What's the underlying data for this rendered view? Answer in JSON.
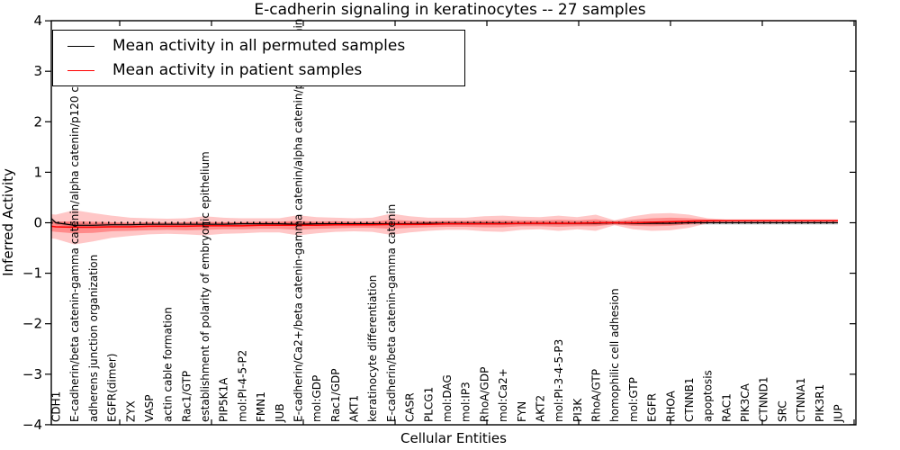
{
  "title": "E-cadherin signaling in keratinocytes -- 27 samples",
  "legend": {
    "entries": [
      {
        "label": "Mean activity in all permuted samples",
        "color": "#000000"
      },
      {
        "label": "Mean activity in patient samples",
        "color": "#ff0000"
      }
    ]
  },
  "chart_data": {
    "type": "line",
    "title": "E-cadherin signaling in keratinocytes -- 27 samples",
    "xlabel": "Cellular Entities",
    "ylabel": "Inferred Activity",
    "ylim": [
      -4,
      4
    ],
    "yticks": [
      4,
      3,
      2,
      1,
      0,
      -1,
      -2,
      -3,
      -4
    ],
    "grid": false,
    "legend_position": "upper left",
    "entities": [
      "CDH1",
      "E-cadherin/beta catenin-gamma catenin/alpha catenin/p120 catenin",
      "adherens junction organization",
      "EGFR(dimer)",
      "ZYX",
      "VASP",
      "actin cable formation",
      "Rac1/GTP",
      "establishment of polarity of embryonic epithelium",
      "PIP5K1A",
      "mol:PI-4-5-P2",
      "FMN1",
      "JUB",
      "E-cadherin/Ca2+/beta catenin-gamma catenin/alpha catenin/p120 catenin",
      "mol:GDP",
      "Rac1/GDP",
      "AKT1",
      "keratinocyte differentiation",
      "E-cadherin/beta catenin-gamma catenin",
      "CASR",
      "PLCG1",
      "mol:DAG",
      "mol:IP3",
      "RhoA/GDP",
      "mol:Ca2+",
      "FYN",
      "AKT2",
      "mol:PI-3-4-5-P3",
      "PI3K",
      "RhoA/GTP",
      "homophilic cell adhesion",
      "mol:GTP",
      "EGFR",
      "RHOA",
      "CTNNB1",
      "apoptosis",
      "RAC1",
      "PIK3CA",
      "CTNND1",
      "SRC",
      "CTNNA1",
      "PIK3R1",
      "JUP"
    ],
    "series": [
      {
        "name": "Mean activity in all permuted samples",
        "color": "#000000",
        "values": [
          0.0,
          -0.05,
          -0.05,
          -0.04,
          -0.04,
          -0.03,
          -0.03,
          -0.03,
          -0.03,
          -0.03,
          -0.02,
          -0.02,
          -0.02,
          -0.03,
          -0.02,
          -0.02,
          -0.02,
          -0.02,
          -0.02,
          -0.02,
          -0.01,
          -0.01,
          -0.01,
          -0.01,
          -0.01,
          -0.01,
          -0.01,
          -0.01,
          -0.01,
          -0.01,
          0,
          -0.01,
          -0.01,
          -0.01,
          0,
          0,
          0,
          0,
          0,
          0,
          0,
          0,
          0
        ]
      },
      {
        "name": "Mean activity in patient samples",
        "color": "#ff0000",
        "values": [
          -0.08,
          -0.09,
          -0.09,
          -0.08,
          -0.08,
          -0.07,
          -0.07,
          -0.07,
          -0.06,
          -0.06,
          -0.06,
          -0.05,
          -0.05,
          -0.05,
          -0.05,
          -0.04,
          -0.04,
          -0.04,
          -0.03,
          -0.03,
          -0.03,
          -0.02,
          -0.02,
          -0.02,
          -0.02,
          -0.01,
          -0.01,
          -0.01,
          -0.01,
          0,
          0,
          0,
          0.01,
          0.02,
          0.03,
          0.04,
          0.04,
          0.04,
          0.04,
          0.04,
          0.04,
          0.04,
          0.04
        ]
      }
    ],
    "bands": {
      "patient_outer_halfwidth": [
        0.24,
        0.34,
        0.28,
        0.22,
        0.18,
        0.16,
        0.15,
        0.16,
        0.19,
        0.16,
        0.15,
        0.14,
        0.14,
        0.2,
        0.16,
        0.14,
        0.13,
        0.14,
        0.21,
        0.16,
        0.13,
        0.12,
        0.12,
        0.15,
        0.16,
        0.13,
        0.12,
        0.15,
        0.12,
        0.16,
        0.05,
        0.13,
        0.17,
        0.17,
        0.13,
        0.05,
        0.03,
        0.03,
        0.03,
        0.03,
        0.03,
        0.03,
        0.03
      ],
      "patient_inner_halfwidth": [
        0.1,
        0.12,
        0.11,
        0.09,
        0.08,
        0.08,
        0.07,
        0.08,
        0.08,
        0.07,
        0.07,
        0.07,
        0.07,
        0.09,
        0.07,
        0.07,
        0.06,
        0.06,
        0.09,
        0.07,
        0.06,
        0.06,
        0.06,
        0.07,
        0.07,
        0.06,
        0.06,
        0.07,
        0.06,
        0.07,
        0.03,
        0.06,
        0.08,
        0.08,
        0.06,
        0.025,
        0.015,
        0.015,
        0.015,
        0.015,
        0.015,
        0.015,
        0.015
      ],
      "permuted_halfwidth": 0.035,
      "outer_color": "rgba(255,0,0,0.22)",
      "inner_color": "rgba(255,0,0,0.30)",
      "permuted_band_color": "rgba(110,110,110,0.30)"
    },
    "zero_line": {
      "y": 0,
      "style": "dotted",
      "color": "#000000"
    },
    "left_edge": {
      "permuted": 0.08,
      "patient": -0.07
    }
  }
}
